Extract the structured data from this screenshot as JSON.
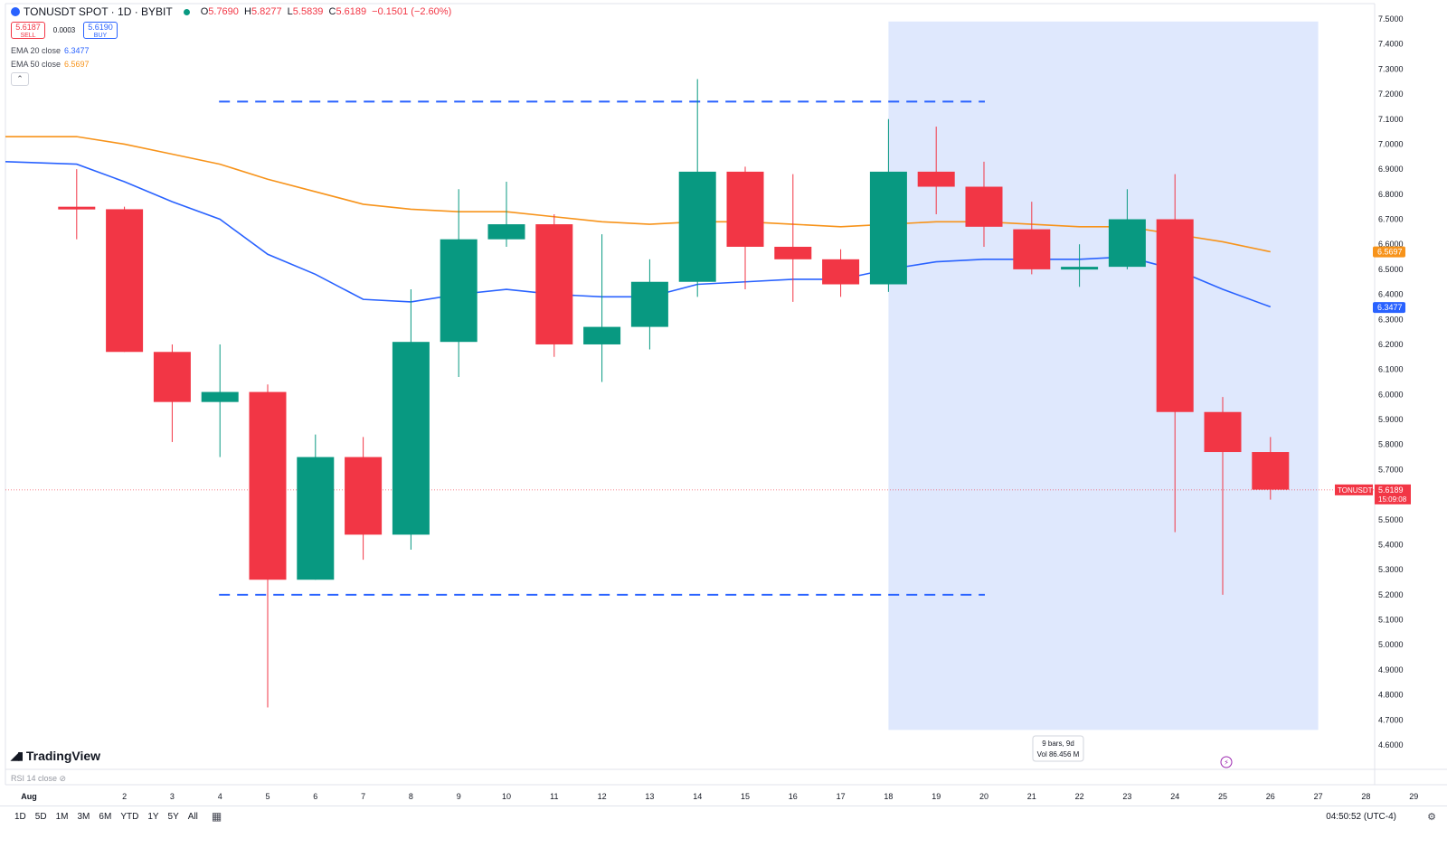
{
  "header": {
    "symbol": "TONUSDT SPOT · 1D · BYBIT",
    "ohlc": {
      "o_label": "O",
      "o_value": "5.7690",
      "h_label": "H",
      "h_value": "5.8277",
      "l_label": "L",
      "l_value": "5.5839",
      "c_label": "C",
      "c_value": "5.6189",
      "change": "−0.1501 (−2.60%)"
    }
  },
  "trade": {
    "sell_price": "5.6187",
    "sell_label": "SELL",
    "spread": "0.0003",
    "buy_price": "5.6190",
    "buy_label": "BUY"
  },
  "indicators": {
    "ema20_label": "EMA 20 close",
    "ema20_value": "6.3477",
    "ema50_label": "EMA 50 close",
    "ema50_value": "6.5697",
    "collapse_glyph": "⌃"
  },
  "logo": {
    "text": "TradingView"
  },
  "rsi": {
    "label": "RSI 14 close"
  },
  "price_tag": {
    "symbol": "TONUSDT",
    "price": "5.6189",
    "countdown": "15:09:08"
  },
  "range_info": {
    "line1": "9 bars, 9d",
    "line2": "Vol 86.456 M"
  },
  "bottom": {
    "ranges": [
      "1D",
      "5D",
      "1M",
      "3M",
      "6M",
      "YTD",
      "1Y",
      "5Y",
      "All"
    ],
    "clock": "04:50:52 (UTC-4)"
  },
  "colors": {
    "up": "#089981",
    "down": "#f23645",
    "ema20": "#2962ff",
    "ema50": "#f7931a",
    "range_fill": "#dce6fd",
    "level_line": "#2962ff"
  },
  "chart_data": {
    "type": "candlestick",
    "x_labels": [
      "Aug",
      "2",
      "3",
      "4",
      "5",
      "6",
      "7",
      "8",
      "9",
      "10",
      "11",
      "12",
      "13",
      "14",
      "15",
      "16",
      "17",
      "18",
      "19",
      "20",
      "21",
      "22",
      "23",
      "24",
      "25",
      "26",
      "27",
      "28",
      "29"
    ],
    "y_ticks": [
      "4.6000",
      "4.7000",
      "4.8000",
      "4.9000",
      "5.0000",
      "5.1000",
      "5.2000",
      "5.3000",
      "5.4000",
      "5.5000",
      "5.6000",
      "5.7000",
      "5.8000",
      "5.9000",
      "6.0000",
      "6.1000",
      "6.2000",
      "6.3000",
      "6.4000",
      "6.5000",
      "6.6000",
      "6.7000",
      "6.8000",
      "6.9000",
      "7.0000",
      "7.1000",
      "7.2000",
      "7.3000",
      "7.4000",
      "7.5000"
    ],
    "ylim": [
      4.6,
      7.5
    ],
    "candles": [
      {
        "day": 1,
        "open": 6.75,
        "high": 6.9,
        "low": 6.62,
        "close": 6.74
      },
      {
        "day": 2,
        "open": 6.74,
        "high": 6.75,
        "low": 6.17,
        "close": 6.17
      },
      {
        "day": 3,
        "open": 6.17,
        "high": 6.2,
        "low": 5.81,
        "close": 5.97
      },
      {
        "day": 4,
        "open": 5.97,
        "high": 6.2,
        "low": 5.75,
        "close": 6.01
      },
      {
        "day": 5,
        "open": 6.01,
        "high": 6.04,
        "low": 4.75,
        "close": 5.26
      },
      {
        "day": 6,
        "open": 5.26,
        "high": 5.84,
        "low": 5.26,
        "close": 5.75
      },
      {
        "day": 7,
        "open": 5.75,
        "high": 5.83,
        "low": 5.34,
        "close": 5.44
      },
      {
        "day": 8,
        "open": 5.44,
        "high": 6.42,
        "low": 5.38,
        "close": 6.21
      },
      {
        "day": 9,
        "open": 6.21,
        "high": 6.82,
        "low": 6.07,
        "close": 6.62
      },
      {
        "day": 10,
        "open": 6.62,
        "high": 6.85,
        "low": 6.59,
        "close": 6.68
      },
      {
        "day": 11,
        "open": 6.68,
        "high": 6.72,
        "low": 6.15,
        "close": 6.2
      },
      {
        "day": 12,
        "open": 6.2,
        "high": 6.64,
        "low": 6.05,
        "close": 6.27
      },
      {
        "day": 13,
        "open": 6.27,
        "high": 6.54,
        "low": 6.18,
        "close": 6.45
      },
      {
        "day": 14,
        "open": 6.45,
        "high": 7.26,
        "low": 6.39,
        "close": 6.89
      },
      {
        "day": 15,
        "open": 6.89,
        "high": 6.91,
        "low": 6.42,
        "close": 6.59
      },
      {
        "day": 16,
        "open": 6.59,
        "high": 6.88,
        "low": 6.37,
        "close": 6.54
      },
      {
        "day": 17,
        "open": 6.54,
        "high": 6.58,
        "low": 6.39,
        "close": 6.44
      },
      {
        "day": 18,
        "open": 6.44,
        "high": 7.1,
        "low": 6.41,
        "close": 6.89
      },
      {
        "day": 19,
        "open": 6.89,
        "high": 7.07,
        "low": 6.72,
        "close": 6.83
      },
      {
        "day": 20,
        "open": 6.83,
        "high": 6.93,
        "low": 6.59,
        "close": 6.67
      },
      {
        "day": 21,
        "open": 6.66,
        "high": 6.77,
        "low": 6.48,
        "close": 6.5
      },
      {
        "day": 22,
        "open": 6.5,
        "high": 6.6,
        "low": 6.43,
        "close": 6.51
      },
      {
        "day": 23,
        "open": 6.51,
        "high": 6.82,
        "low": 6.5,
        "close": 6.7
      },
      {
        "day": 24,
        "open": 6.7,
        "high": 6.88,
        "low": 5.45,
        "close": 5.93
      },
      {
        "day": 25,
        "open": 5.93,
        "high": 5.99,
        "low": 5.2,
        "close": 5.77
      },
      {
        "day": 26,
        "open": 5.77,
        "high": 5.83,
        "low": 5.58,
        "close": 5.62
      }
    ],
    "ema20": [
      [
        0,
        6.93
      ],
      [
        1,
        6.92
      ],
      [
        2,
        6.85
      ],
      [
        3,
        6.77
      ],
      [
        4,
        6.7
      ],
      [
        5,
        6.56
      ],
      [
        6,
        6.48
      ],
      [
        7,
        6.38
      ],
      [
        8,
        6.37
      ],
      [
        9,
        6.4
      ],
      [
        10,
        6.42
      ],
      [
        11,
        6.4
      ],
      [
        12,
        6.39
      ],
      [
        13,
        6.39
      ],
      [
        14,
        6.44
      ],
      [
        15,
        6.45
      ],
      [
        16,
        6.46
      ],
      [
        17,
        6.46
      ],
      [
        18,
        6.5
      ],
      [
        19,
        6.53
      ],
      [
        20,
        6.54
      ],
      [
        21,
        6.54
      ],
      [
        22,
        6.54
      ],
      [
        23,
        6.55
      ],
      [
        24,
        6.5
      ],
      [
        25,
        6.42
      ],
      [
        26,
        6.35
      ]
    ],
    "ema50": [
      [
        0,
        7.03
      ],
      [
        1,
        7.03
      ],
      [
        2,
        7.0
      ],
      [
        3,
        6.96
      ],
      [
        4,
        6.92
      ],
      [
        5,
        6.86
      ],
      [
        6,
        6.81
      ],
      [
        7,
        6.76
      ],
      [
        8,
        6.74
      ],
      [
        9,
        6.73
      ],
      [
        10,
        6.73
      ],
      [
        11,
        6.71
      ],
      [
        12,
        6.69
      ],
      [
        13,
        6.68
      ],
      [
        14,
        6.69
      ],
      [
        15,
        6.69
      ],
      [
        16,
        6.68
      ],
      [
        17,
        6.67
      ],
      [
        18,
        6.68
      ],
      [
        19,
        6.69
      ],
      [
        20,
        6.69
      ],
      [
        21,
        6.68
      ],
      [
        22,
        6.67
      ],
      [
        23,
        6.67
      ],
      [
        24,
        6.64
      ],
      [
        25,
        6.61
      ],
      [
        26,
        6.57
      ]
    ],
    "levels": [
      {
        "price": 7.17,
        "from_day": 4,
        "to_day": 20
      },
      {
        "price": 5.2,
        "from_day": 4,
        "to_day": 20
      }
    ],
    "date_range": {
      "from_day": 18,
      "to_day": 27,
      "price_from": 4.66,
      "price_to": 7.49
    },
    "last_price": 5.6189
  }
}
